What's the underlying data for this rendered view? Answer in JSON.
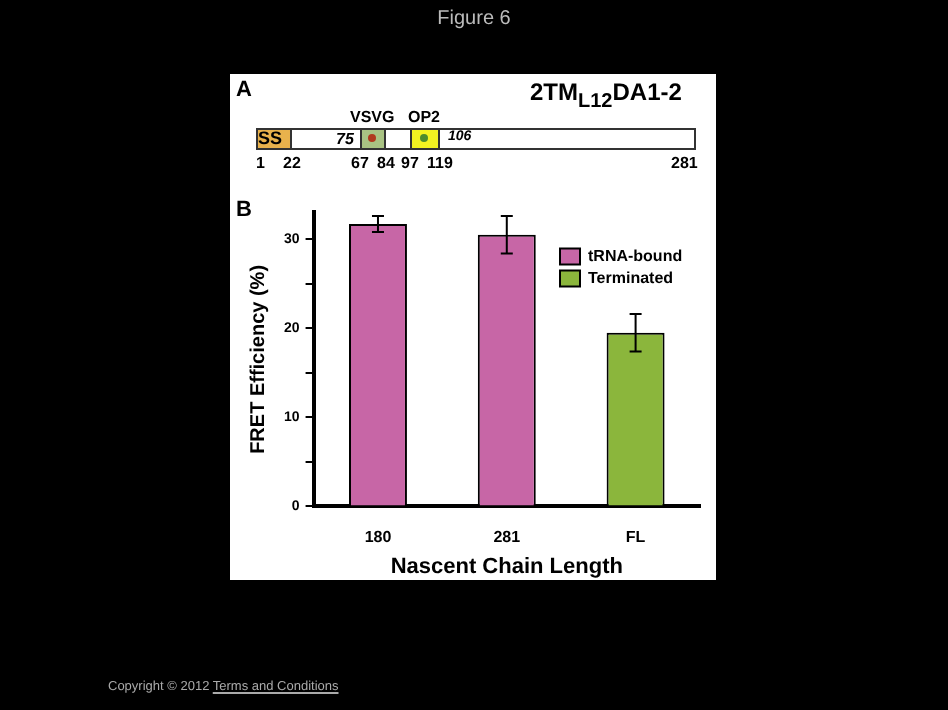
{
  "chart_data": [
    {
      "type": "other",
      "title": "2TM$_{L12}$DA1-2",
      "annotations": [
        "Figure 6",
        "A",
        "SS",
        "VSVG",
        "OP2",
        "75",
        "106",
        "1",
        "22",
        "67",
        "84",
        "97",
        "119",
        "281"
      ]
    },
    {
      "type": "bar",
      "categories": [
        "180",
        "281",
        "FL"
      ],
      "xlabel": "Nascent Chain Length",
      "ylabel": "FRET Efficiency (%)",
      "series": [
        {
          "name": "tRNA-bound",
          "color": "#c766a6",
          "values": [
            31.7,
            30.5,
            null
          ],
          "errors": [
            0.9,
            2.1,
            null
          ]
        },
        {
          "name": "Terminated",
          "color": "#8bb63c",
          "values": [
            null,
            null,
            19.5
          ],
          "errors": [
            null,
            null,
            2.1
          ]
        }
      ],
      "ylim": [
        0,
        33
      ],
      "yticks": [
        0,
        {
          "value": 5,
          "label": null
        },
        10,
        {
          "value": 15,
          "label": null
        },
        20,
        {
          "value": 25,
          "label": null
        },
        30
      ],
      "grid": false,
      "legend": "top right",
      "annotations": [
        "B",
        "Copyright © 2012",
        "Terms and Conditions"
      ]
    }
  ]
}
